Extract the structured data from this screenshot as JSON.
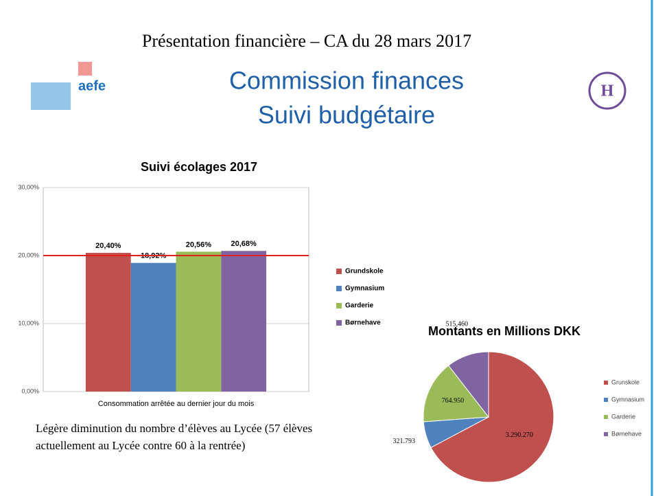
{
  "slide": {
    "header": "Présentation  financière  – CA du 28 mars 2017",
    "title_line1": "Commission  finances",
    "title_line2": "Suivi budgétaire",
    "logo_text": "aefe",
    "note_line1": "Légère diminution du nombre d’élèves au Lycée (57 élèves",
    "note_line2": "actuellement au Lycée contre 60 à la rentrée)"
  },
  "chart_data": [
    {
      "type": "bar",
      "title": "Suivi écolages 2017",
      "categories": [
        "Consommation arrêtée au dernier jour du mois"
      ],
      "series": [
        {
          "name": "Grundskole",
          "color": "#c0504d",
          "values": [
            20.4
          ],
          "value_labels": [
            "20,40%"
          ]
        },
        {
          "name": "Gymnasium",
          "color": "#4f81bd",
          "values": [
            18.92
          ],
          "value_labels": [
            "18,92%"
          ]
        },
        {
          "name": "Garderie",
          "color": "#9bbb59",
          "values": [
            20.56
          ],
          "value_labels": [
            "20,56%"
          ]
        },
        {
          "name": "Børnehave",
          "color": "#8064a2",
          "values": [
            20.68
          ],
          "value_labels": [
            "20,68%"
          ]
        }
      ],
      "ylim": [
        0,
        30
      ],
      "yticks": [
        {
          "value": 0,
          "label": "0,00%"
        },
        {
          "value": 10,
          "label": "10,00%"
        },
        {
          "value": 20,
          "label": "20,00%"
        },
        {
          "value": 30,
          "label": "30,00%"
        }
      ],
      "reference_line": {
        "value": 20,
        "color": "#e02020"
      },
      "legend": "right"
    },
    {
      "type": "pie",
      "title": "Montants en Millions DKK",
      "categories": [
        "Grunskole",
        "Gymnasium",
        "Garderie",
        "Børnehave"
      ],
      "values": [
        3290270,
        321793,
        764950,
        515460
      ],
      "value_labels": [
        "3.290.270",
        "321.793",
        "764.950",
        "515,460"
      ],
      "colors": [
        "#c0504d",
        "#4f81bd",
        "#9bbb59",
        "#8064a2"
      ],
      "legend": "right"
    }
  ]
}
